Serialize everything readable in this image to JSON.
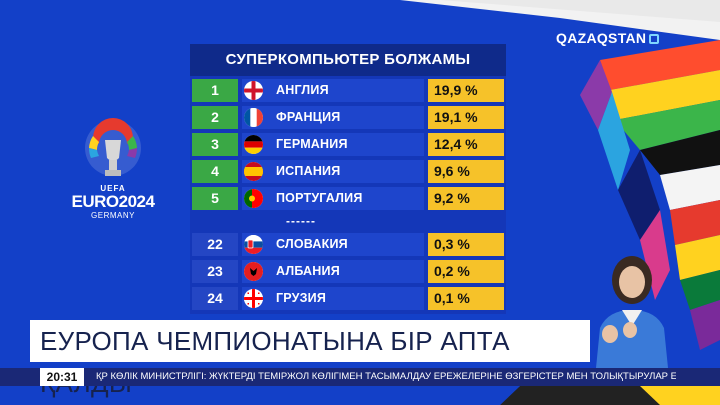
{
  "channel": {
    "name": "QAZAQSTAN"
  },
  "event_logo": {
    "top": "UEFA",
    "name": "EURO2024",
    "host": "GERMANY"
  },
  "table": {
    "title": "СУПЕРКОМПЬЮТЕР БОЛЖАМЫ",
    "separator": "------",
    "rows": [
      {
        "rank": "1",
        "country": "АНГЛИЯ",
        "percent": "19,9 %",
        "flag_icon": "england-flag-icon"
      },
      {
        "rank": "2",
        "country": "ФРАНЦИЯ",
        "percent": "19,1 %",
        "flag_icon": "france-flag-icon"
      },
      {
        "rank": "3",
        "country": "ГЕРМАНИЯ",
        "percent": "12,4 %",
        "flag_icon": "germany-flag-icon"
      },
      {
        "rank": "4",
        "country": "ИСПАНИЯ",
        "percent": "9,6 %",
        "flag_icon": "spain-flag-icon"
      },
      {
        "rank": "5",
        "country": "ПОРТУГАЛИЯ",
        "percent": "9,2 %",
        "flag_icon": "portugal-flag-icon"
      },
      {
        "rank": "22",
        "country": "СЛОВАКИЯ",
        "percent": "0,3 %",
        "flag_icon": "slovakia-flag-icon"
      },
      {
        "rank": "23",
        "country": "АЛБАНИЯ",
        "percent": "0,2 %",
        "flag_icon": "albania-flag-icon"
      },
      {
        "rank": "24",
        "country": "ГРУЗИЯ",
        "percent": "0,1 %",
        "flag_icon": "georgia-flag-icon"
      }
    ]
  },
  "headline": "ЕУРОПА ЧЕМПИОНАТЫНА БІР АПТА ҚАЛДЫ",
  "ticker": {
    "time": "20:31",
    "text": "ҚР КӨЛІК МИНИСТРЛІГІ: ЖҮКТЕРДІ ТЕМІРЖОЛ КӨЛІГІМЕН ТАСЫМАЛДАУ ЕРЕЖЕЛЕРІНЕ ӨЗГЕРІСТЕР МЕН ТОЛЫҚТЫРУЛАР ЕНГІЗІЛДІ"
  },
  "colors": {
    "background": "#1340c8",
    "rank_top": "#3aa845",
    "percent": "#f6c229"
  }
}
